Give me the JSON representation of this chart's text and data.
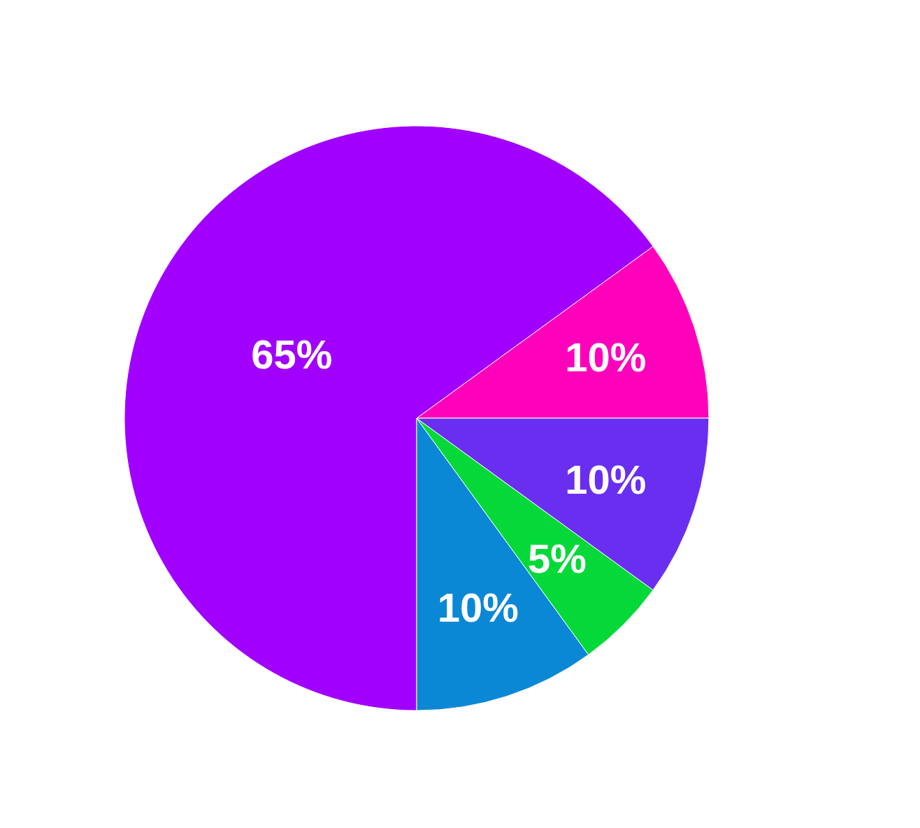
{
  "chart_data": {
    "type": "pie",
    "categories": [
      null,
      null,
      null,
      null,
      null
    ],
    "values": [
      10,
      65,
      10,
      5,
      10
    ],
    "value_labels": [
      "10%",
      "65%",
      "10%",
      "5%",
      "10%"
    ],
    "colors": [
      "#ff00bb",
      "#a100ff",
      "#0a88d5",
      "#05d93a",
      "#6a2ef0"
    ]
  }
}
